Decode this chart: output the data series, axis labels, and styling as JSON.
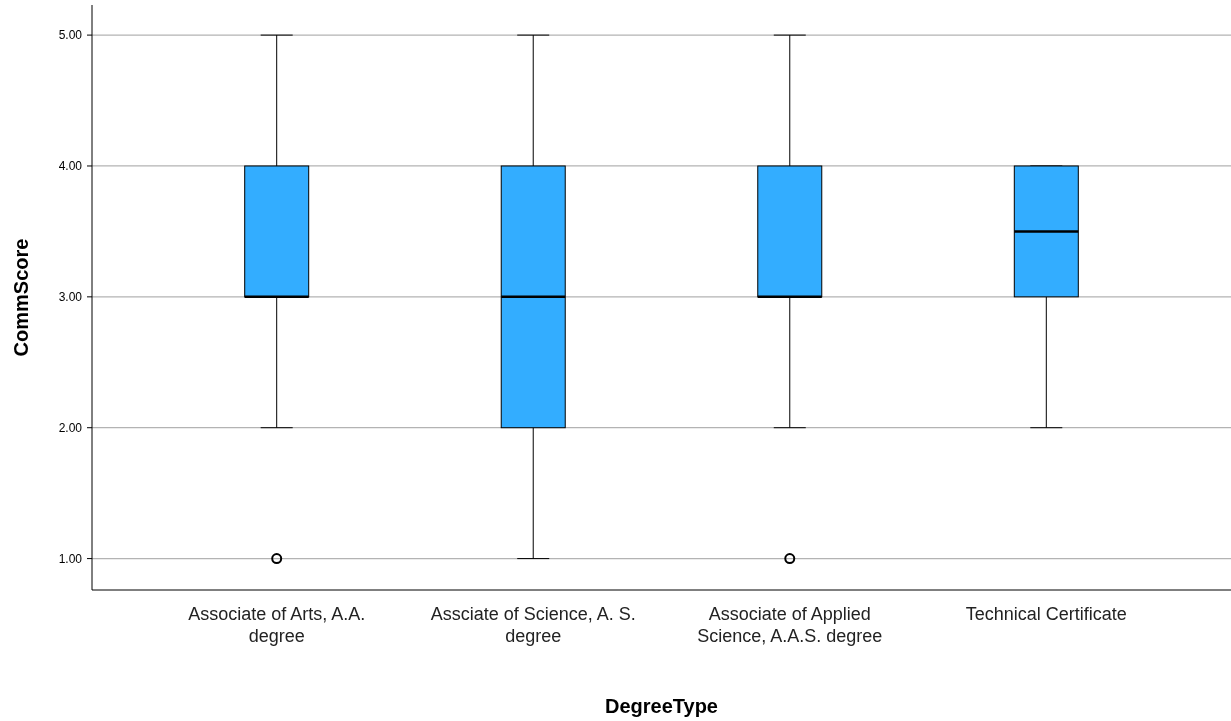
{
  "chart_data": {
    "type": "box",
    "xlabel": "DegreeType",
    "ylabel": "CommScore",
    "categories": [
      "Associate of Arts, A.A. degree",
      "Assciate of Science, A. S. degree",
      "Associate of Applied Science, A.A.S. degree",
      "Technical Certificate"
    ],
    "series": [
      {
        "color": "#33adff",
        "boxes": [
          {
            "low": 2,
            "q1": 3,
            "median": 3,
            "q3": 4,
            "high": 5,
            "outliers": [
              1
            ]
          },
          {
            "low": 1,
            "q1": 2,
            "median": 3,
            "q3": 4,
            "high": 5
          },
          {
            "low": 2,
            "q1": 3,
            "median": 3,
            "q3": 4,
            "high": 5,
            "outliers": [
              1
            ]
          },
          {
            "low": 2,
            "q1": 3,
            "median": 3.5,
            "q3": 4,
            "high": 4
          }
        ]
      }
    ],
    "ylim": [
      0.76,
      5.23
    ],
    "yticks": [
      {
        "value": 1,
        "label": "1.00"
      },
      {
        "value": 2,
        "label": "2.00"
      },
      {
        "value": 3,
        "label": "3.00"
      },
      {
        "value": 4,
        "label": "4.00"
      },
      {
        "value": 5,
        "label": "5.00"
      }
    ],
    "grid": "y"
  }
}
